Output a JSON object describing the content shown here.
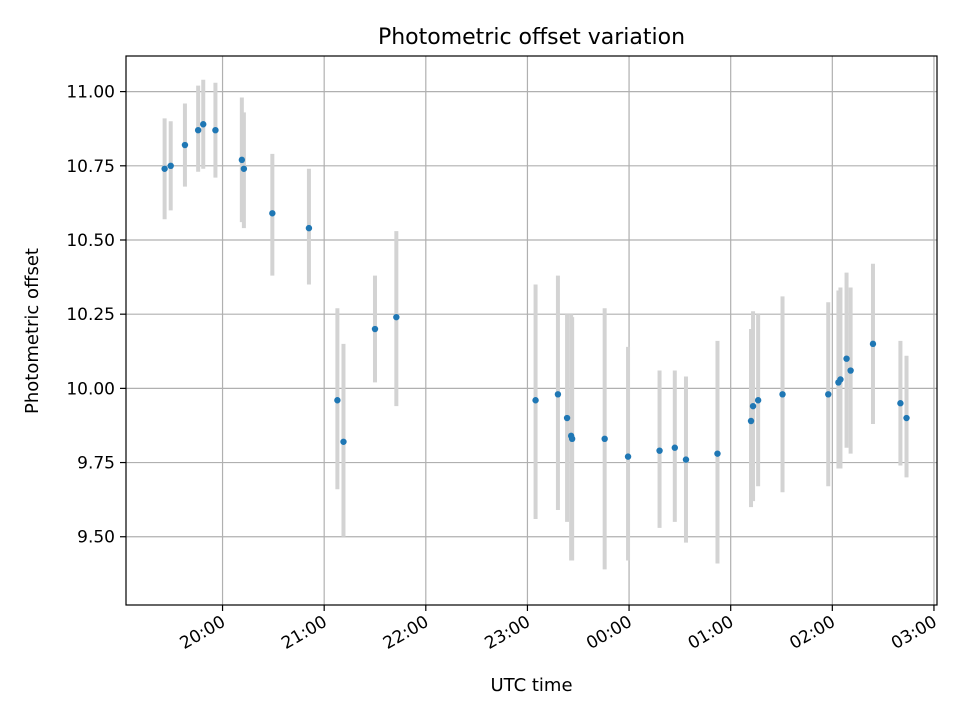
{
  "chart_data": {
    "type": "scatter",
    "title": "Photometric offset variation",
    "xlabel": "UTC time",
    "ylabel": "Photometric offset",
    "x_axis": "time (hours since 20:00 UTC, 0 = 20:00)",
    "xlim": [
      -0.95,
      7.03
    ],
    "ylim": [
      9.27,
      11.12
    ],
    "xticks": [
      {
        "pos": 0,
        "label": "20:00"
      },
      {
        "pos": 1,
        "label": "21:00"
      },
      {
        "pos": 2,
        "label": "22:00"
      },
      {
        "pos": 3,
        "label": "23:00"
      },
      {
        "pos": 4,
        "label": "00:00"
      },
      {
        "pos": 5,
        "label": "01:00"
      },
      {
        "pos": 6,
        "label": "02:00"
      },
      {
        "pos": 7,
        "label": "03:00"
      }
    ],
    "yticks": [
      {
        "pos": 9.5,
        "label": "9.50"
      },
      {
        "pos": 9.75,
        "label": "9.75"
      },
      {
        "pos": 10.0,
        "label": "10.00"
      },
      {
        "pos": 10.25,
        "label": "10.25"
      },
      {
        "pos": 10.5,
        "label": "10.50"
      },
      {
        "pos": 10.75,
        "label": "10.75"
      },
      {
        "pos": 11.0,
        "label": "11.00"
      }
    ],
    "grid": true,
    "point_color": "#1f77b4",
    "errorbar_color": "#d3d3d3",
    "points": [
      {
        "x": -0.57,
        "y": 10.74,
        "lo": 10.57,
        "hi": 10.91
      },
      {
        "x": -0.51,
        "y": 10.75,
        "lo": 10.6,
        "hi": 10.9
      },
      {
        "x": -0.37,
        "y": 10.82,
        "lo": 10.68,
        "hi": 10.96
      },
      {
        "x": -0.24,
        "y": 10.87,
        "lo": 10.73,
        "hi": 11.02
      },
      {
        "x": -0.19,
        "y": 10.89,
        "lo": 10.74,
        "hi": 11.04
      },
      {
        "x": -0.07,
        "y": 10.87,
        "lo": 10.71,
        "hi": 11.03
      },
      {
        "x": 0.19,
        "y": 10.77,
        "lo": 10.56,
        "hi": 10.98
      },
      {
        "x": 0.21,
        "y": 10.74,
        "lo": 10.54,
        "hi": 10.93
      },
      {
        "x": 0.49,
        "y": 10.59,
        "lo": 10.38,
        "hi": 10.79
      },
      {
        "x": 0.85,
        "y": 10.54,
        "lo": 10.35,
        "hi": 10.74
      },
      {
        "x": 1.13,
        "y": 9.96,
        "lo": 9.66,
        "hi": 10.27
      },
      {
        "x": 1.19,
        "y": 9.82,
        "lo": 9.5,
        "hi": 10.15
      },
      {
        "x": 1.5,
        "y": 10.2,
        "lo": 10.02,
        "hi": 10.38
      },
      {
        "x": 1.71,
        "y": 10.24,
        "lo": 9.94,
        "hi": 10.53
      },
      {
        "x": 3.08,
        "y": 9.96,
        "lo": 9.56,
        "hi": 10.35
      },
      {
        "x": 3.3,
        "y": 9.98,
        "lo": 9.59,
        "hi": 10.38
      },
      {
        "x": 3.39,
        "y": 9.9,
        "lo": 9.55,
        "hi": 10.25
      },
      {
        "x": 3.43,
        "y": 9.84,
        "lo": 9.42,
        "hi": 10.25
      },
      {
        "x": 3.44,
        "y": 9.83,
        "lo": 9.42,
        "hi": 10.24
      },
      {
        "x": 3.76,
        "y": 9.83,
        "lo": 9.39,
        "hi": 10.27
      },
      {
        "x": 3.99,
        "y": 9.77,
        "lo": 9.42,
        "hi": 10.14
      },
      {
        "x": 4.3,
        "y": 9.79,
        "lo": 9.53,
        "hi": 10.06
      },
      {
        "x": 4.45,
        "y": 9.8,
        "lo": 9.55,
        "hi": 10.06
      },
      {
        "x": 4.56,
        "y": 9.76,
        "lo": 9.48,
        "hi": 10.04
      },
      {
        "x": 4.87,
        "y": 9.78,
        "lo": 9.41,
        "hi": 10.16
      },
      {
        "x": 5.2,
        "y": 9.89,
        "lo": 9.6,
        "hi": 10.2
      },
      {
        "x": 5.22,
        "y": 9.94,
        "lo": 9.62,
        "hi": 10.26
      },
      {
        "x": 5.27,
        "y": 9.96,
        "lo": 9.67,
        "hi": 10.25
      },
      {
        "x": 5.51,
        "y": 9.98,
        "lo": 9.65,
        "hi": 10.31
      },
      {
        "x": 5.96,
        "y": 9.98,
        "lo": 9.67,
        "hi": 10.29
      },
      {
        "x": 6.06,
        "y": 10.02,
        "lo": 9.73,
        "hi": 10.33
      },
      {
        "x": 6.08,
        "y": 10.03,
        "lo": 9.73,
        "hi": 10.34
      },
      {
        "x": 6.14,
        "y": 10.1,
        "lo": 9.8,
        "hi": 10.39
      },
      {
        "x": 6.18,
        "y": 10.06,
        "lo": 9.78,
        "hi": 10.34
      },
      {
        "x": 6.4,
        "y": 10.15,
        "lo": 9.88,
        "hi": 10.42
      },
      {
        "x": 6.67,
        "y": 9.95,
        "lo": 9.74,
        "hi": 10.16
      },
      {
        "x": 6.73,
        "y": 9.9,
        "lo": 9.7,
        "hi": 10.11
      }
    ]
  }
}
